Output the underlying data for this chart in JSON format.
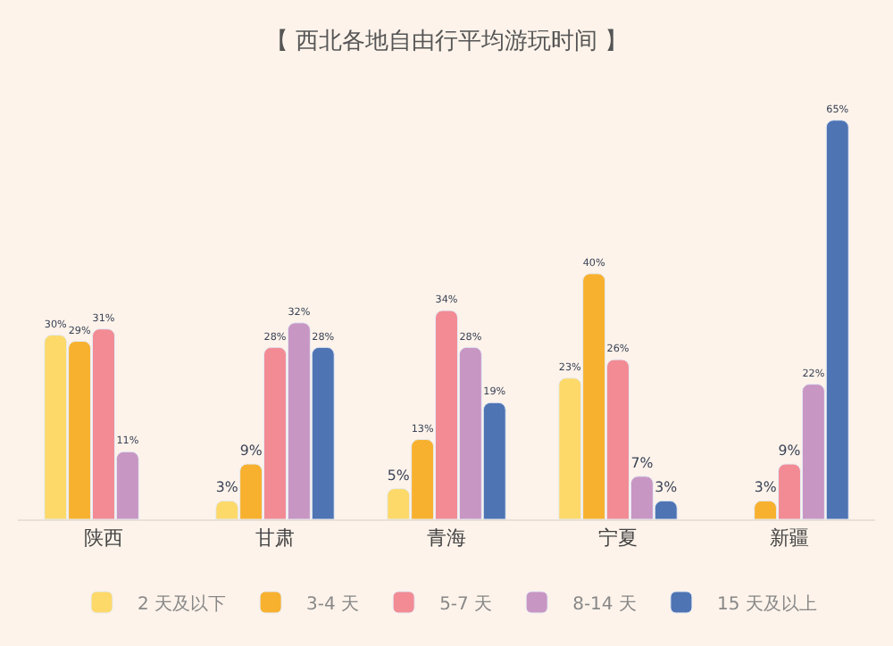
{
  "chart_data": {
    "type": "bar",
    "title": "【 西北各地自由行平均游玩时间 】",
    "categories": [
      "陕西",
      "甘肃",
      "青海",
      "宁夏",
      "新疆"
    ],
    "legend": "bottom",
    "grid": false,
    "tick_labels": "x",
    "series": [
      {
        "name": "2 天及以下",
        "color": "#fdd96a",
        "values": [
          30,
          3,
          5,
          23,
          null
        ],
        "value_labels": [
          "30%",
          "3%",
          "5%",
          "23%",
          null
        ]
      },
      {
        "name": "3-4 天",
        "color": "#f8b12f",
        "values": [
          29,
          9,
          13,
          40,
          3
        ],
        "value_labels": [
          "29%",
          "9%",
          "13%",
          "40%",
          "3%"
        ]
      },
      {
        "name": "5-7 天",
        "color": "#f28b94",
        "values": [
          31,
          28,
          34,
          26,
          9
        ],
        "value_labels": [
          "31%",
          "28%",
          "34%",
          "26%",
          "9%"
        ]
      },
      {
        "name": "8-14 天",
        "color": "#c896c3",
        "values": [
          11,
          32,
          28,
          7,
          22
        ],
        "value_labels": [
          "11%",
          "32%",
          "28%",
          "7%",
          "22%"
        ]
      },
      {
        "name": "15 天及以上",
        "color": "#4f74b3",
        "values": [
          null,
          28,
          19,
          3,
          65
        ],
        "value_labels": [
          null,
          "28%",
          "19%",
          "3%",
          "65%"
        ]
      }
    ]
  }
}
